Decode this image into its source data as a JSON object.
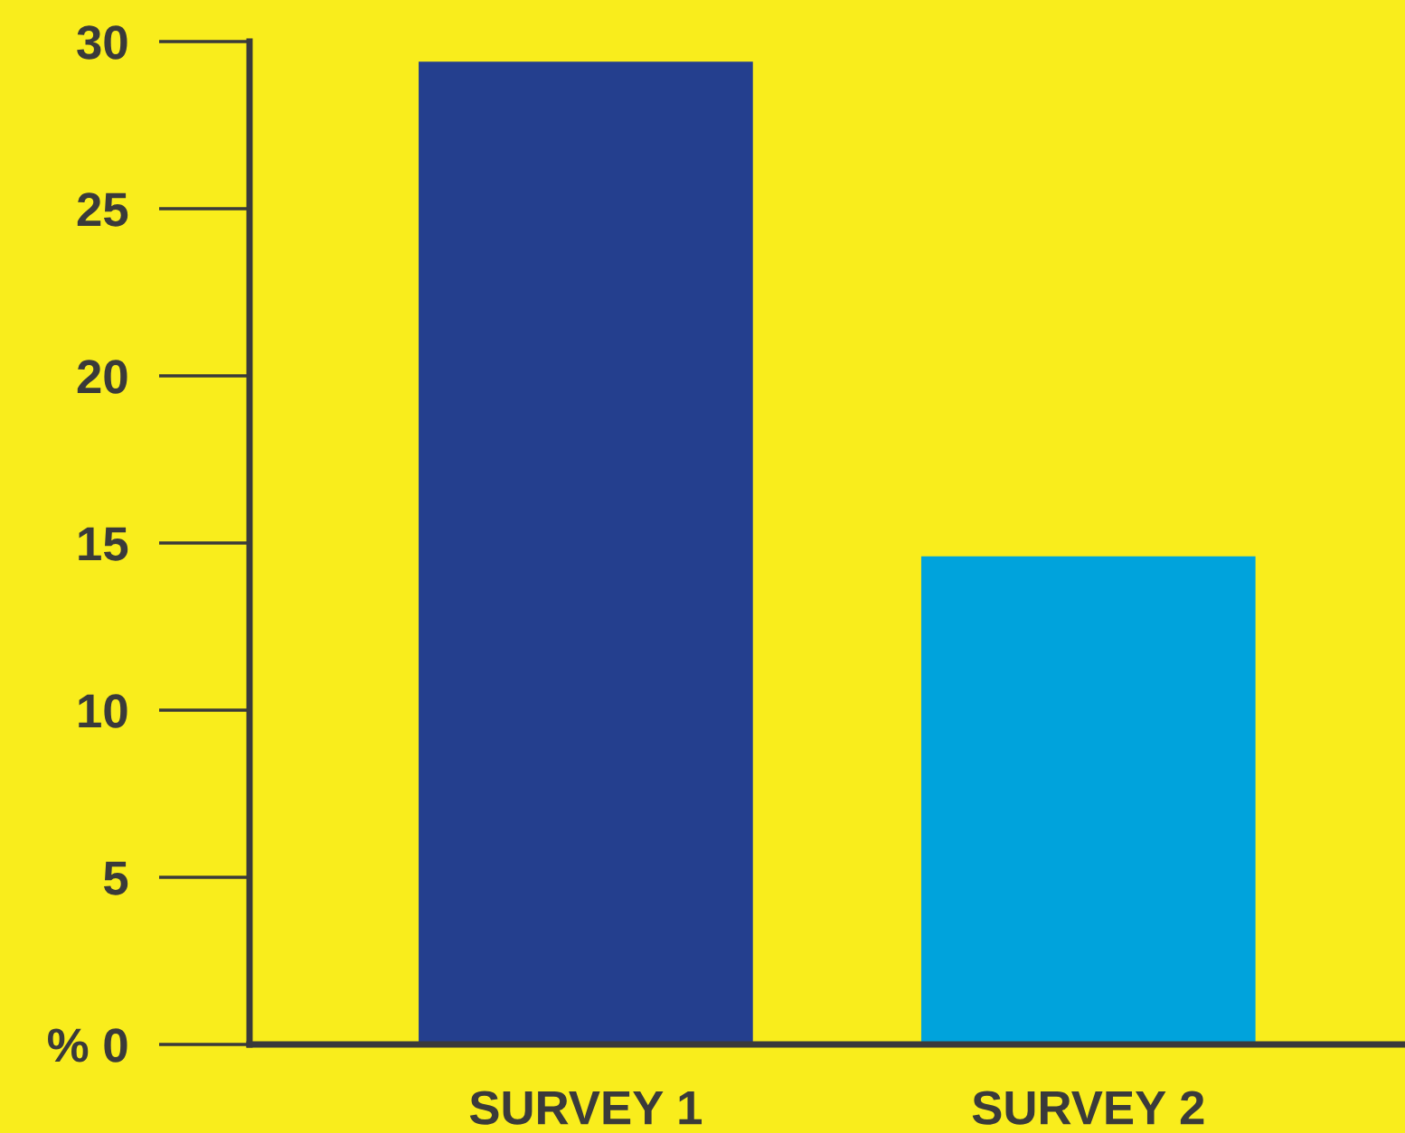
{
  "chart_data": {
    "type": "bar",
    "categories": [
      "SURVEY 1",
      "SURVEY 2"
    ],
    "values": [
      29.4,
      14.6
    ],
    "colors": [
      "#243f8e",
      "#00a3dc"
    ],
    "ylim": [
      0,
      30
    ],
    "yticks": [
      {
        "value": 0,
        "label": "% 0"
      },
      5,
      10,
      15,
      20,
      25,
      30
    ],
    "grid": false,
    "legend": false
  }
}
